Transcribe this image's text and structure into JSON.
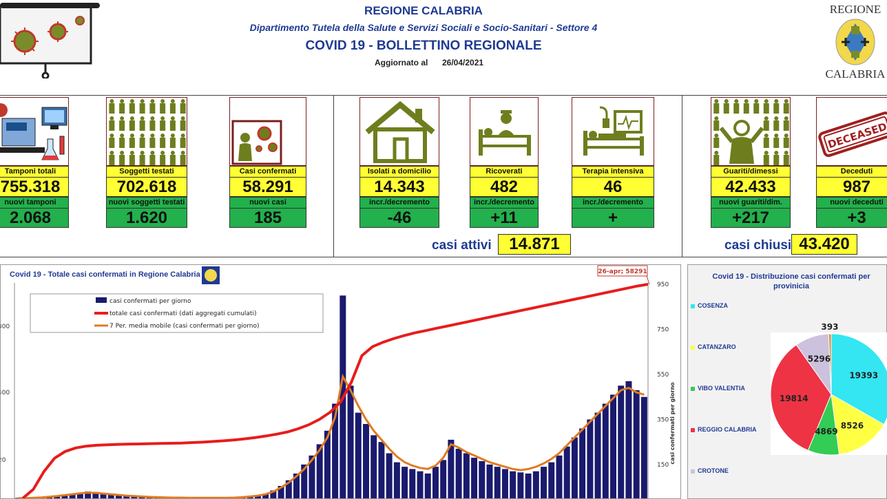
{
  "header": {
    "title": "REGIONE CALABRIA",
    "dept": "Dipartimento Tutela della Salute e Servizi Sociali e Socio-Sanitari - Settore 4",
    "bulletin": "COVID 19 - BOLLETTINO REGIONALE",
    "updated_label": "Aggiornato al",
    "updated_date": "26/04/2021",
    "logo_top": "REGIONE",
    "logo_bottom": "CALABRIA"
  },
  "cards": [
    {
      "label": "Tamponi totali",
      "value": "755.318",
      "sub": "nuovi tamponi",
      "delta": "2.068",
      "icon": "lab-icon"
    },
    {
      "label": "Soggetti testati",
      "value": "702.618",
      "sub": "nuovi soggetti testati",
      "delta": "1.620",
      "icon": "people-icon"
    },
    {
      "label": "Casi confermati",
      "value": "58.291",
      "sub": "nuovi casi",
      "delta": "185",
      "icon": "infected-icon"
    },
    {
      "label": "Isolati a domicilio",
      "value": "14.343",
      "sub": "incr./decremento",
      "delta": "-46",
      "icon": "house-icon"
    },
    {
      "label": "Ricoverati",
      "value": "482",
      "sub": "incr./decremento",
      "delta": "+11",
      "icon": "hospital-bed-icon"
    },
    {
      "label": "Terapia intensiva",
      "value": "46",
      "sub": "incr./decremento",
      "delta": "+",
      "icon": "icu-icon"
    },
    {
      "label": "Guariti/dimessi",
      "value": "42.433",
      "sub": "nuovi guariti/dim.",
      "delta": "+217",
      "icon": "recovered-icon"
    },
    {
      "label": "Deceduti",
      "value": "987",
      "sub": "nuovi deceduti",
      "delta": "+3",
      "icon": "deceased-icon"
    }
  ],
  "aggregates": {
    "active_label": "casi attivi",
    "active_value": "14.871",
    "closed_label": "casi chiusi",
    "closed_value": "43.420"
  },
  "deceased_stamp": "DECEASED",
  "colors": {
    "yellow": "#ffff33",
    "green": "#22b14c",
    "navy": "#1f3a93",
    "bar": "#1a1a6e",
    "cumulative": "#e81c1c",
    "moving_avg": "#e07b20"
  },
  "chart_data": [
    {
      "type": "bar",
      "title": "Covid 19 - Totale casi confermati in Regione Calabria",
      "annotation": "26-apr; 58291",
      "legend": [
        "casi confermati per giorno",
        "totale casi confermati (dati aggregati cumulati)",
        "7 Per. media mobile (casi confermati per giorno)"
      ],
      "right_axis_label": "casi confermati per giorno",
      "right_ticks": [
        "950",
        "750",
        "550",
        "350",
        "150"
      ],
      "left_ticks": [
        "300",
        "400",
        "20"
      ],
      "right_ylim": [
        0,
        950
      ],
      "series": [
        {
          "name": "casi confermati per giorno",
          "values": [
            2,
            1,
            3,
            5,
            8,
            12,
            15,
            20,
            25,
            30,
            28,
            22,
            18,
            15,
            12,
            10,
            8,
            6,
            5,
            4,
            3,
            3,
            2,
            2,
            2,
            1,
            1,
            2,
            3,
            5,
            8,
            12,
            20,
            35,
            55,
            80,
            110,
            150,
            190,
            240,
            300,
            420,
            900,
            500,
            380,
            330,
            280,
            250,
            200,
            160,
            140,
            130,
            120,
            110,
            140,
            170,
            260,
            220,
            200,
            180,
            165,
            150,
            140,
            130,
            120,
            115,
            110,
            120,
            140,
            160,
            190,
            230,
            270,
            310,
            350,
            380,
            420,
            460,
            500,
            520,
            480,
            450
          ]
        },
        {
          "name": "7 Per. media mobile (casi confermati per giorno)",
          "values": [
            1,
            1,
            2,
            4,
            7,
            10,
            14,
            18,
            22,
            25,
            24,
            21,
            18,
            15,
            12,
            10,
            8,
            6,
            5,
            4,
            3,
            3,
            2,
            2,
            2,
            2,
            2,
            2,
            3,
            5,
            8,
            12,
            18,
            30,
            48,
            70,
            98,
            130,
            170,
            215,
            270,
            360,
            540,
            480,
            410,
            350,
            300,
            260,
            220,
            185,
            160,
            145,
            135,
            130,
            145,
            180,
            240,
            225,
            205,
            190,
            175,
            160,
            150,
            140,
            130,
            125,
            130,
            140,
            155,
            175,
            200,
            235,
            270,
            305,
            340,
            375,
            410,
            445,
            480,
            490,
            470,
            460
          ]
        },
        {
          "name": "totale casi confermati (dati aggregati cumulati)",
          "values": [
            0,
            200,
            600,
            900,
            1050,
            1130,
            1170,
            1190,
            1200,
            1210,
            1215,
            1220,
            1225,
            1230,
            1235,
            1240,
            1250,
            1260,
            1275,
            1290,
            1310,
            1335,
            1365,
            1400,
            1440,
            1490,
            1560,
            1650,
            1770,
            1930,
            2160,
            2600,
            3200,
            3400,
            3500,
            3580,
            3650,
            3710,
            3760,
            3810,
            3860,
            3910,
            3960,
            4010,
            4060,
            4110,
            4160,
            4210,
            4260,
            4310,
            4360,
            4410,
            4460,
            4510,
            4560,
            4610,
            4660,
            4710,
            4760,
            4800
          ]
        }
      ]
    },
    {
      "type": "pie",
      "title": "Covid 19 - Distribuzione casi confermati per provinicia",
      "categories": [
        "COSENZA",
        "CATANZARO",
        "VIBO VALENTIA",
        "REGGIO CALABRIA",
        "CROTONE",
        ""
      ],
      "values": [
        19393,
        8526,
        4869,
        19814,
        5296,
        393
      ],
      "colors": [
        "#33e6f2",
        "#ffff44",
        "#33cc55",
        "#ee3344",
        "#ccc2dd",
        "#e08830"
      ]
    }
  ]
}
